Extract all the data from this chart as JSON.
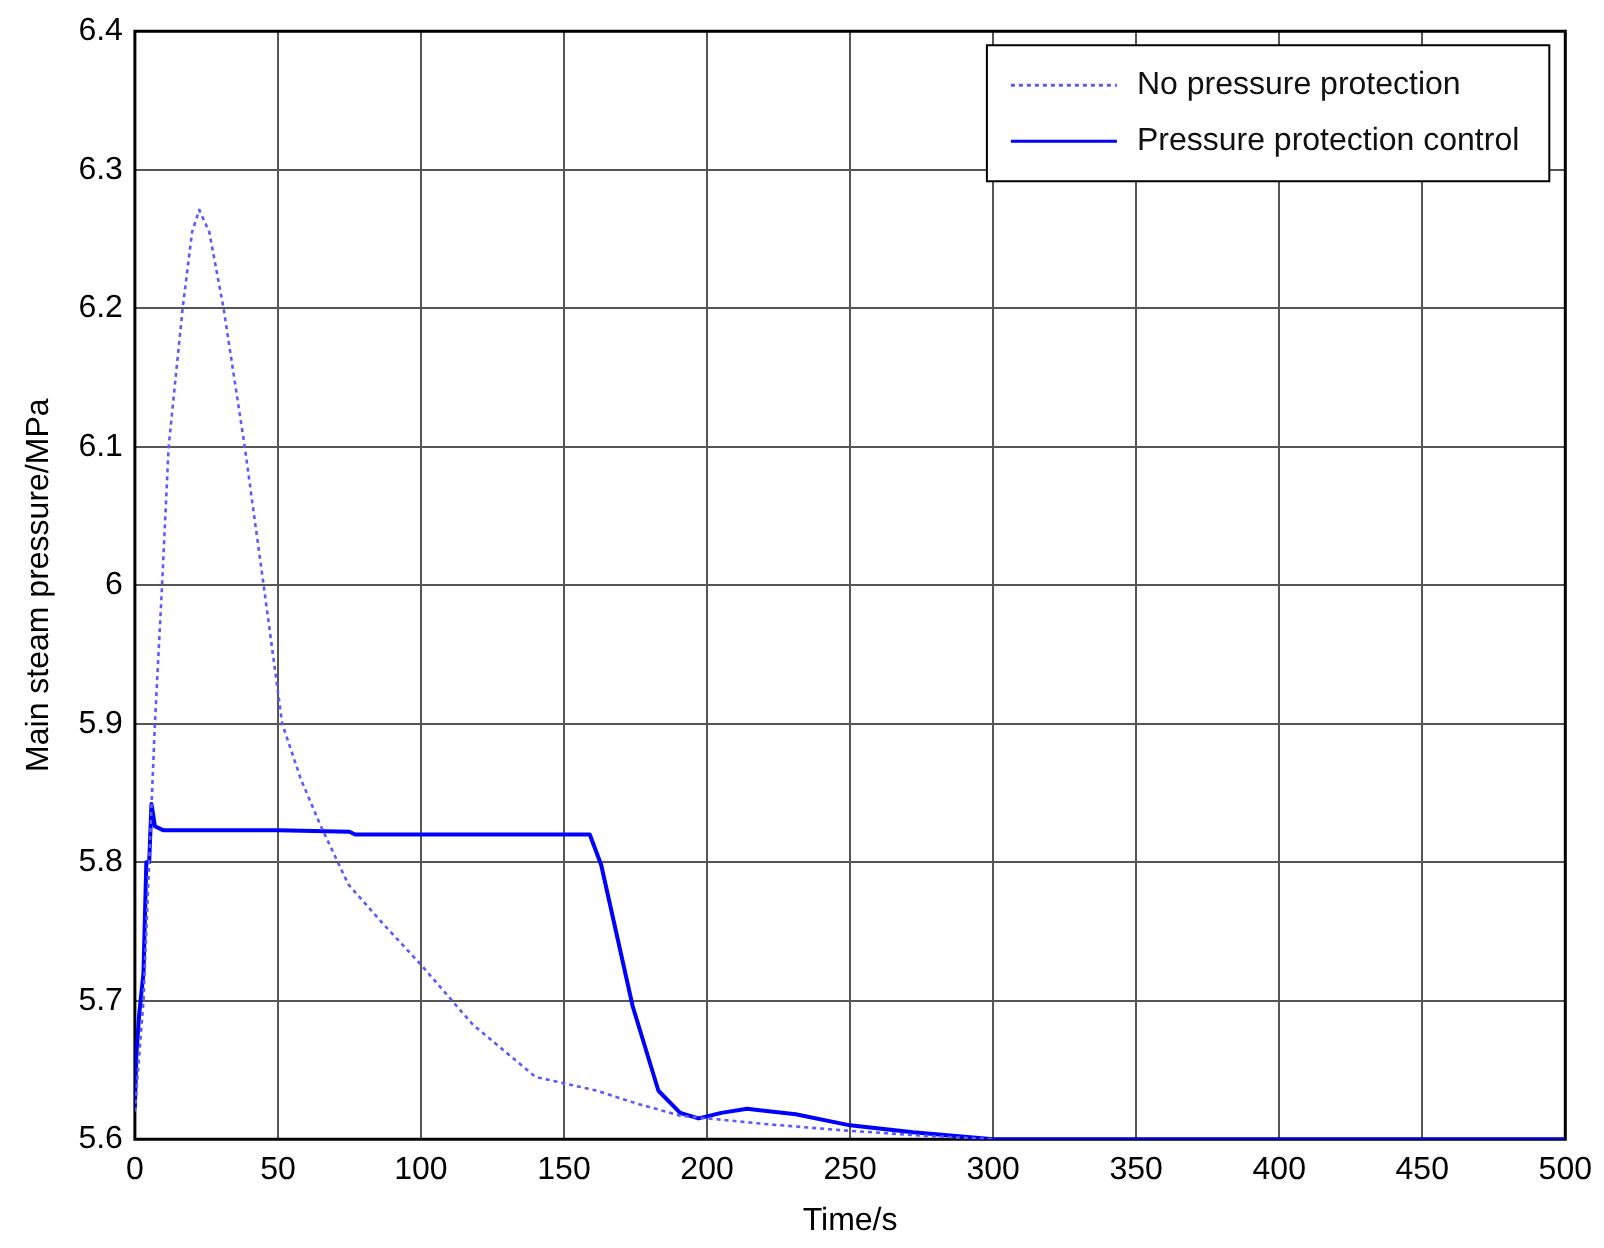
{
  "chart_data": {
    "type": "line",
    "xlabel": "Time/s",
    "ylabel": "Main steam pressure/MPa",
    "xlim": [
      0,
      500
    ],
    "xticks": [
      0,
      50,
      100,
      150,
      200,
      250,
      300,
      350,
      400,
      450,
      500
    ],
    "ylim": [
      5.6,
      6.4
    ],
    "yticks": [
      5.6,
      5.7,
      5.8,
      5.9,
      6,
      6.1,
      6.2,
      6.3,
      6.4
    ],
    "grid": true,
    "legend": "top right",
    "marker": "none",
    "series": [
      {
        "name": "No pressure protection",
        "color": "#5a5aff",
        "line_style": "dotted",
        "x": [
          0,
          3,
          7,
          9.5,
          11.8,
          16.7,
          20,
          22.5,
          26,
          31,
          38.4,
          45,
          51.5,
          58,
          65,
          74.6,
          87,
          100,
          118,
          140,
          161.6,
          175,
          190.6,
          220,
          250,
          280,
          300
        ],
        "values": [
          5.62,
          5.7,
          5.9,
          6.0,
          6.1,
          6.2,
          6.255,
          6.271,
          6.255,
          6.2,
          6.1,
          6.0,
          5.9,
          5.86,
          5.826,
          5.784,
          5.755,
          5.726,
          5.683,
          5.645,
          5.635,
          5.626,
          5.617,
          5.611,
          5.606,
          5.602,
          5.6
        ]
      },
      {
        "name": "Pressure protection control",
        "color": "#0000ff",
        "line_style": "solid",
        "x": [
          0,
          0.5,
          1.5,
          3,
          4,
          5,
          5.8,
          7,
          10,
          50,
          75,
          77,
          159,
          163,
          174,
          183,
          190.6,
          197,
          205,
          214,
          231,
          250,
          272,
          300,
          350,
          400,
          450,
          500
        ],
        "values": [
          5.623,
          5.66,
          5.69,
          5.72,
          5.8,
          5.8,
          5.842,
          5.826,
          5.823,
          5.823,
          5.822,
          5.82,
          5.82,
          5.798,
          5.696,
          5.635,
          5.619,
          5.615,
          5.619,
          5.622,
          5.618,
          5.61,
          5.605,
          5.6,
          5.6,
          5.6,
          5.6,
          5.6
        ]
      }
    ]
  }
}
